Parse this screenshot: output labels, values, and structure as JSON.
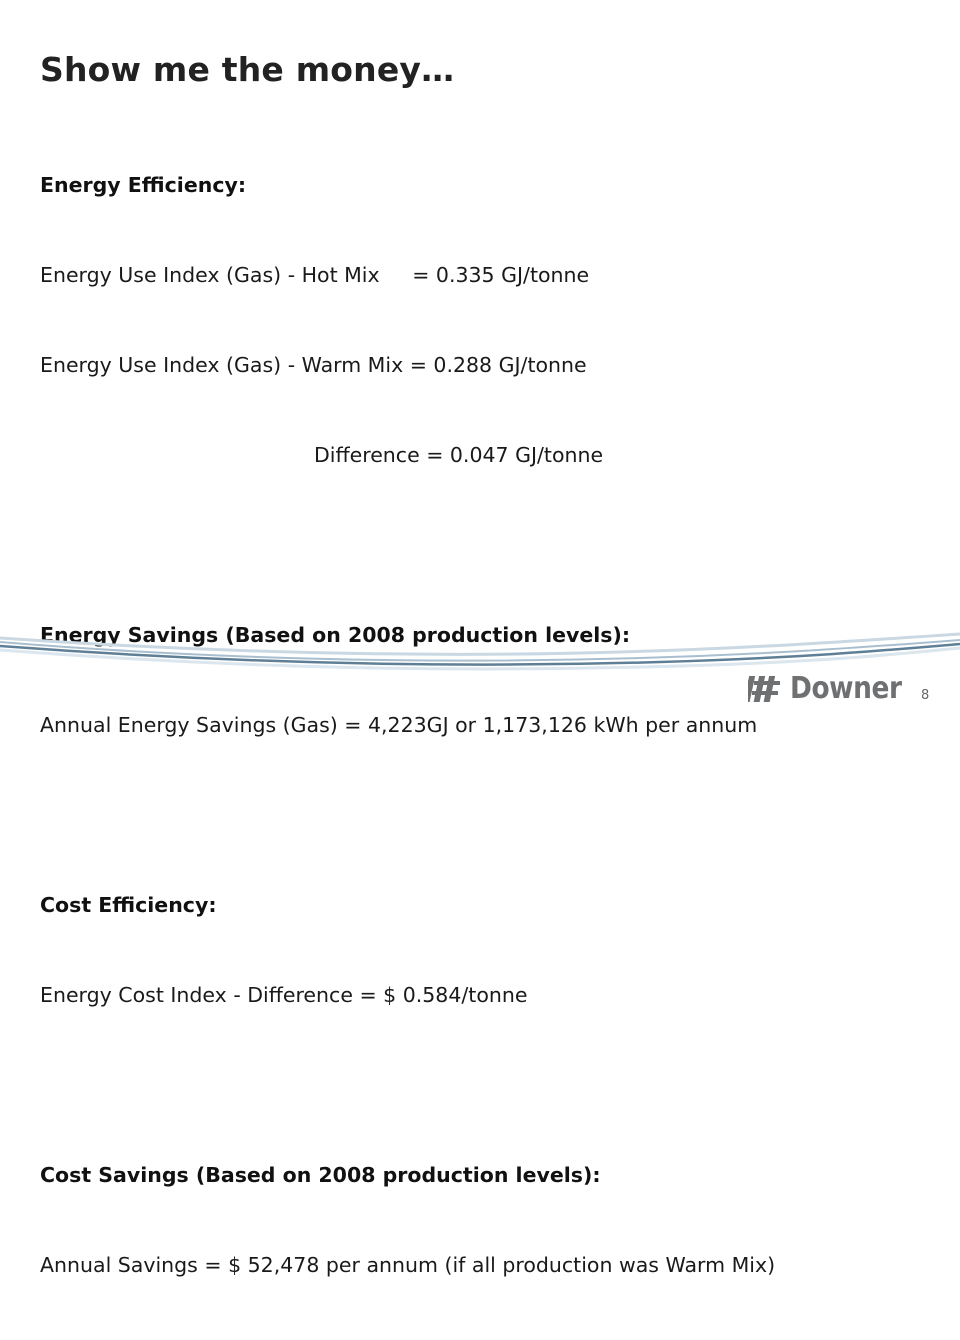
{
  "slide": {
    "title": "Show me the money…",
    "lines": {
      "l1": "Energy Efficiency:",
      "l2": "Energy Use Index (Gas) - Hot Mix     = 0.335 GJ/tonne",
      "l3": "Energy Use Index (Gas) - Warm Mix = 0.288 GJ/tonne",
      "l4": "Difference = 0.047 GJ/tonne",
      "l5": "Energy Savings (Based on 2008 production levels):",
      "l6": "Annual Energy Savings (Gas) = 4,223GJ or 1,173,126 kWh per annum",
      "l7": "Cost Efficiency:",
      "l8": "Energy Cost Index - Difference = $ 0.584/tonne",
      "l9": "Cost Savings (Based on 2008 production levels):",
      "l10": "Annual Savings = $ 52,478 per annum (if all production was Warm Mix)"
    },
    "logo_text": "Downer",
    "page_number": "8"
  },
  "colors": {
    "swoosh_dark": "#5f7f96",
    "swoosh_light": "#c9d8e3",
    "logo_gray": "#6e7071"
  }
}
